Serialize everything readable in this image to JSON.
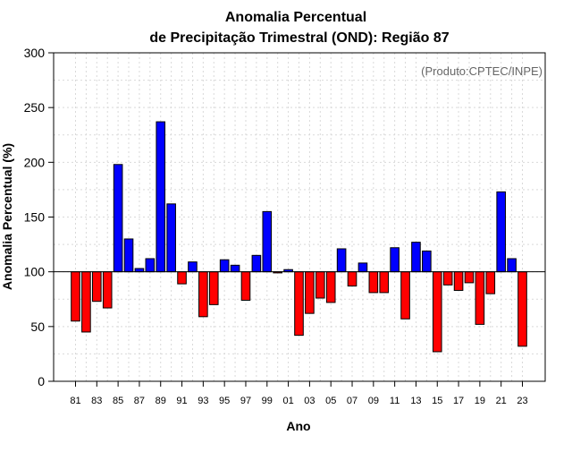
{
  "chart_data": {
    "type": "bar",
    "title": "Anomalia Percentual",
    "subtitle": "de Precipitação Trimestral (OND): Região 87",
    "xlabel": "Ano",
    "ylabel": "Anomalia Percentual (%)",
    "source_note": "(Produto:CPTEC/INPE)",
    "ylim": [
      0,
      300
    ],
    "yticks": [
      0,
      50,
      100,
      150,
      200,
      250,
      300
    ],
    "baseline": 100,
    "grid": true,
    "colors": {
      "above": "#0000ff",
      "below": "#ff0000"
    },
    "categories": [
      "81",
      "82",
      "83",
      "84",
      "85",
      "86",
      "87",
      "88",
      "89",
      "90",
      "91",
      "92",
      "93",
      "94",
      "95",
      "96",
      "97",
      "98",
      "99",
      "00",
      "01",
      "02",
      "03",
      "04",
      "05",
      "06",
      "07",
      "08",
      "09",
      "10",
      "11",
      "12",
      "13",
      "14",
      "15",
      "16",
      "17",
      "18",
      "19",
      "20",
      "21",
      "22",
      "23"
    ],
    "tick_labels": [
      "81",
      "83",
      "85",
      "87",
      "89",
      "91",
      "93",
      "95",
      "97",
      "99",
      "01",
      "03",
      "05",
      "07",
      "09",
      "11",
      "13",
      "15",
      "17",
      "19",
      "21",
      "23"
    ],
    "values": [
      55,
      45,
      73,
      67,
      198,
      130,
      103,
      112,
      237,
      162,
      89,
      109,
      59,
      70,
      111,
      106,
      74,
      115,
      155,
      99,
      102,
      42,
      62,
      76,
      72,
      121,
      87,
      108,
      81,
      81,
      122,
      57,
      127,
      119,
      27,
      88,
      83,
      90,
      52,
      80,
      173,
      112,
      32
    ]
  }
}
